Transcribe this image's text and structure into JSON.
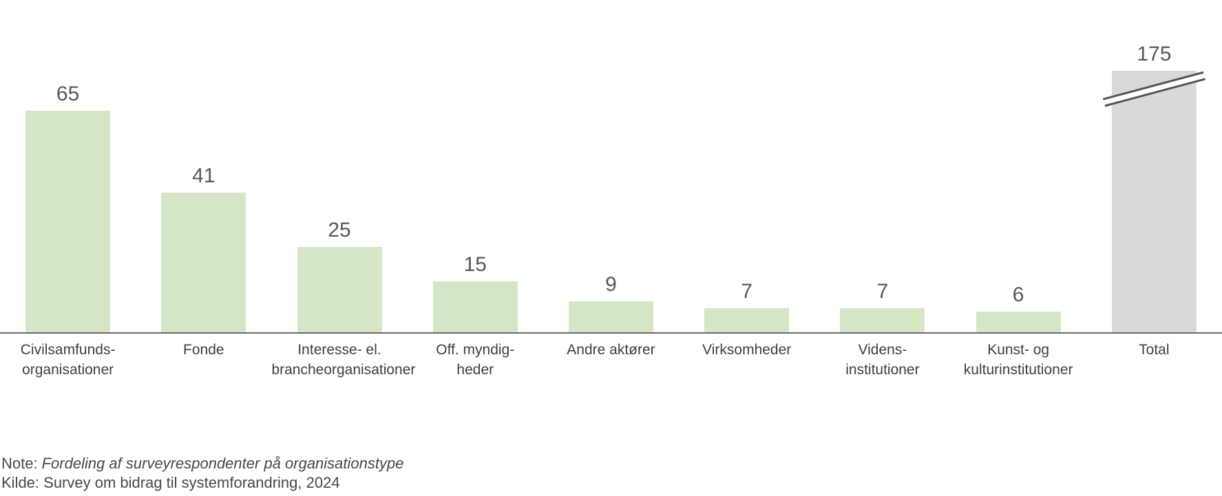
{
  "chart_data": {
    "type": "bar",
    "title": "",
    "xlabel": "",
    "ylabel": "",
    "grid": false,
    "legend": false,
    "axis": {
      "y_axis_visible": false,
      "x_axis_line": true,
      "axis_break_on": "Total"
    },
    "categories": [
      "Civilsamfundsorganisationer",
      "Fonde",
      "Interesse- el. brancheorganisationer",
      "Off. myndigheder",
      "Andre aktører",
      "Virksomheder",
      "Vidensinstitutioner",
      "Kunst- og kulturinstitutioner",
      "Total"
    ],
    "values": [
      65,
      41,
      25,
      15,
      9,
      7,
      7,
      6,
      175
    ],
    "bars": [
      {
        "label_lines": [
          "Civilsamfunds-",
          "organisationer"
        ],
        "value": 65,
        "color": "#d4e6c5",
        "axis_break": false
      },
      {
        "label_lines": [
          "Fonde"
        ],
        "value": 41,
        "color": "#d4e6c5",
        "axis_break": false
      },
      {
        "label_lines": [
          "Interesse- el.",
          "brancheorganisationer"
        ],
        "value": 25,
        "color": "#d4e6c5",
        "axis_break": false
      },
      {
        "label_lines": [
          "Off. myndig-",
          "heder"
        ],
        "value": 15,
        "color": "#d4e6c5",
        "axis_break": false
      },
      {
        "label_lines": [
          "Andre aktører"
        ],
        "value": 9,
        "color": "#d4e6c5",
        "axis_break": false
      },
      {
        "label_lines": [
          "Virksomheder"
        ],
        "value": 7,
        "color": "#d4e6c5",
        "axis_break": false
      },
      {
        "label_lines": [
          "Videns-",
          "institutioner"
        ],
        "value": 7,
        "color": "#d4e6c5",
        "axis_break": false
      },
      {
        "label_lines": [
          "Kunst- og",
          "kulturinstitutioner"
        ],
        "value": 6,
        "color": "#d4e6c5",
        "axis_break": false
      },
      {
        "label_lines": [
          "Total"
        ],
        "value": 175,
        "color": "#d9d9d9",
        "axis_break": true
      }
    ],
    "colors": {
      "default_bar": "#d4e6c5",
      "total_bar": "#d9d9d9",
      "value_label": "#575757",
      "category_label": "#3f3f3f",
      "axis_line": "#6a6a6a",
      "break_line": "#545454"
    }
  },
  "note": {
    "prefix": "Note:",
    "italic_text": "Fordeling af surveyrespondenter på organisationstype"
  },
  "source": {
    "text": "Kilde: Survey om bidrag til systemforandring, 2024"
  }
}
